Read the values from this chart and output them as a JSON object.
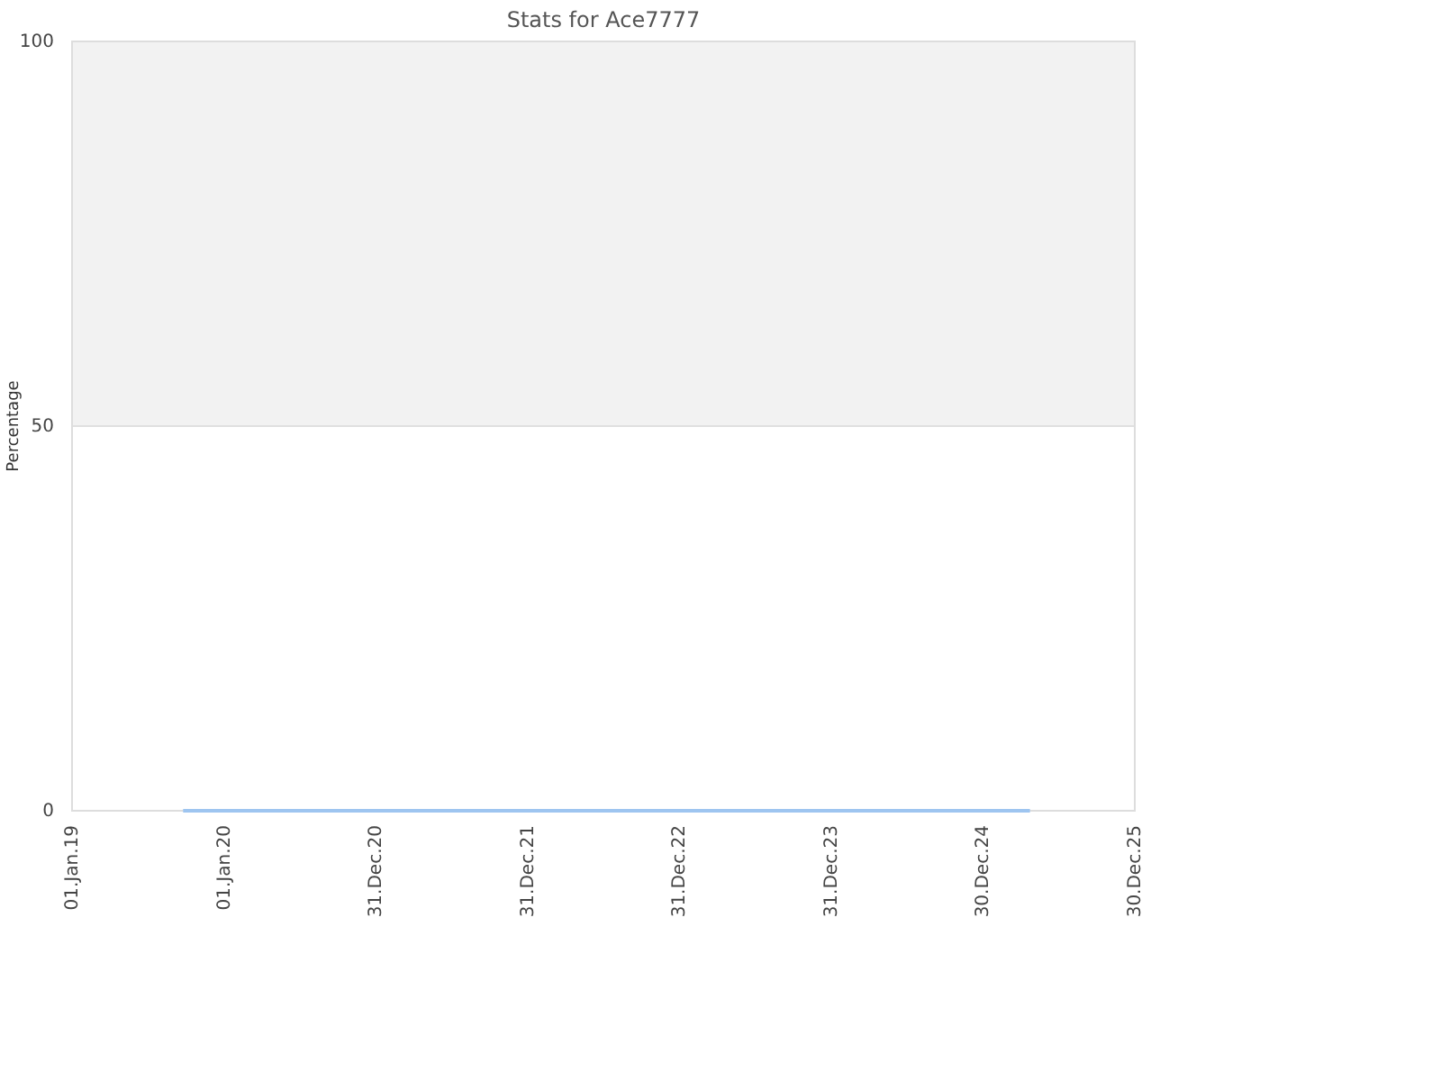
{
  "chart_data": {
    "type": "line",
    "title": "Stats for Ace7777",
    "ylabel": "Percentage",
    "x": [
      "2019-09-25",
      "2025-04-22"
    ],
    "series": [
      {
        "color": "#9ec5f0",
        "values": [
          0,
          0
        ]
      }
    ],
    "xlim": [
      "2019-01-01",
      "2025-12-30"
    ],
    "xticks": [
      {
        "value": "2019-01-01",
        "label": "01.Jan.19"
      },
      {
        "value": "2020-01-01",
        "label": "01.Jan.20"
      },
      {
        "value": "2020-12-31",
        "label": "31.Dec.20"
      },
      {
        "value": "2021-12-31",
        "label": "31.Dec.21"
      },
      {
        "value": "2022-12-31",
        "label": "31.Dec.22"
      },
      {
        "value": "2023-12-31",
        "label": "31.Dec.23"
      },
      {
        "value": "2024-12-30",
        "label": "30.Dec.24"
      },
      {
        "value": "2025-12-30",
        "label": "30.Dec.25"
      }
    ],
    "ylim": [
      0,
      100
    ],
    "yticks": [
      0,
      50,
      100
    ],
    "grid": "y",
    "bands": [
      {
        "axis": "y",
        "from": 50,
        "to": 100,
        "color": "#f2f2f2"
      }
    ]
  }
}
